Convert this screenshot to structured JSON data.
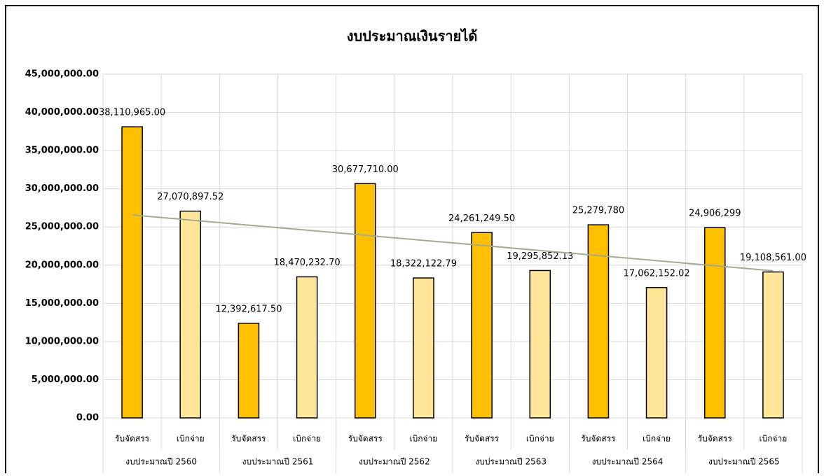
{
  "chart_data": {
    "type": "bar",
    "title": "งบประมาณเงินรายได้",
    "categories": [
      "รับจัดสรร",
      "เบิกจ่าย",
      "รับจัดสรร",
      "เบิกจ่าย",
      "รับจัดสรร",
      "เบิกจ่าย",
      "รับจัดสรร",
      "เบิกจ่าย",
      "รับจัดสรร",
      "เบิกจ่าย",
      "รับจัดสรร",
      "เบิกจ่าย"
    ],
    "groups": [
      "งบประมาณปี 2560",
      "งบประมาณปี 2561",
      "งบประมาณปี 2562",
      "งบประมาณปี 2563",
      "งบประมาณปี 2564",
      "งบประมาณปี 2565"
    ],
    "values": [
      38110965.0,
      27070897.52,
      12392617.5,
      18470232.7,
      30677710.0,
      18322122.79,
      24261249.5,
      19295852.13,
      25279780,
      17062152.02,
      24906299,
      19108561.0
    ],
    "value_labels": [
      "38,110,965.00",
      "27,070,897.52",
      "12,392,617.50",
      "18,470,232.70",
      "30,677,710.00",
      "18,322,122.79",
      "24,261,249.50",
      "19,295,852.13",
      "25,279,780",
      "17,062,152.02",
      "24,906,299",
      "19,108,561.00"
    ],
    "colors": [
      "#ffc000",
      "#ffe699",
      "#ffc000",
      "#ffe699",
      "#ffc000",
      "#ffe699",
      "#ffc000",
      "#ffe699",
      "#ffc000",
      "#ffe699",
      "#ffc000",
      "#ffe699"
    ],
    "ylim": [
      0,
      45000000
    ],
    "yticks": [
      {
        "value": 0,
        "label": "0.00"
      },
      {
        "value": 5000000,
        "label": "5,000,000.00"
      },
      {
        "value": 10000000,
        "label": "10,000,000.00"
      },
      {
        "value": 15000000,
        "label": "15,000,000.00"
      },
      {
        "value": 20000000,
        "label": "20,000,000.00"
      },
      {
        "value": 25000000,
        "label": "25,000,000.00"
      },
      {
        "value": 30000000,
        "label": "30,000,000.00"
      },
      {
        "value": 35000000,
        "label": "35,000,000.00"
      },
      {
        "value": 40000000,
        "label": "40,000,000.00"
      },
      {
        "value": 45000000,
        "label": "45,000,000.00"
      }
    ],
    "grid": true,
    "trendline": {
      "type": "linear",
      "color": "#8fb0a8",
      "color2": "#e0a040"
    }
  }
}
